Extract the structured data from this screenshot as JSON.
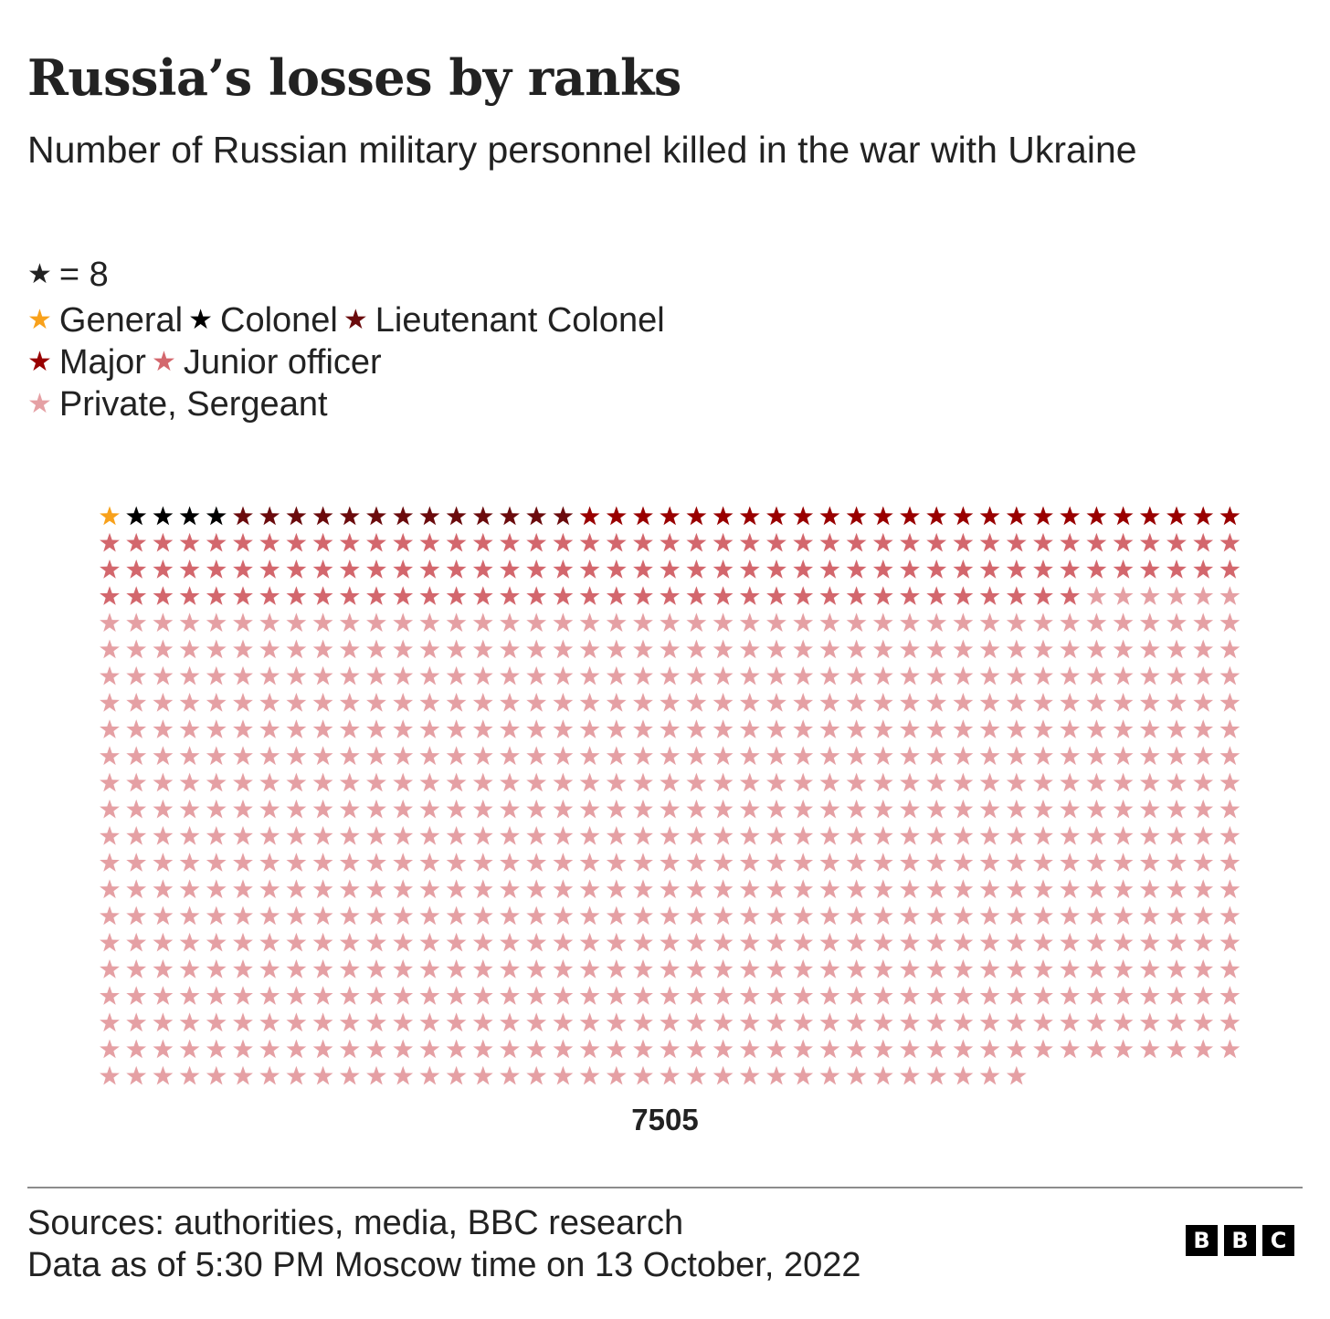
{
  "header": {
    "title": "Russia’s losses by ranks",
    "subtitle": "Number of Russian military personnel killed in the war with Ukraine"
  },
  "legend": {
    "unit_label": "= 8",
    "unit_icon": "star-icon",
    "unit_color": "#222222",
    "entries": [
      {
        "label": "General",
        "color": "#f8a11b"
      },
      {
        "label": "Colonel",
        "color": "#000000"
      },
      {
        "label": "Lieutenant Colonel",
        "color": "#6b0b0d"
      },
      {
        "label": "Major",
        "color": "#990000"
      },
      {
        "label": "Junior officer",
        "color": "#d3676d"
      },
      {
        "label": "Private, Sergeant",
        "color": "#e5a0a4"
      }
    ]
  },
  "chart_data": {
    "type": "waffle",
    "unit_value": 8,
    "unit_label": "= 8",
    "columns": 43,
    "total_label": "7505",
    "categories": [
      "General",
      "Colonel",
      "Lieutenant Colonel",
      "Major",
      "Junior officer",
      "Private, Sergeant"
    ],
    "icon_counts": [
      1,
      4,
      13,
      25,
      123,
      772
    ],
    "colors": [
      "#f8a11b",
      "#000000",
      "#6b0b0d",
      "#990000",
      "#d3676d",
      "#e5a0a4"
    ]
  },
  "footer": {
    "sources": "Sources: authorities, media, BBC research",
    "date": "Data as of 5:30 PM Moscow time on 13 October, 2022"
  },
  "logo": {
    "letters": [
      "B",
      "B",
      "C"
    ]
  }
}
